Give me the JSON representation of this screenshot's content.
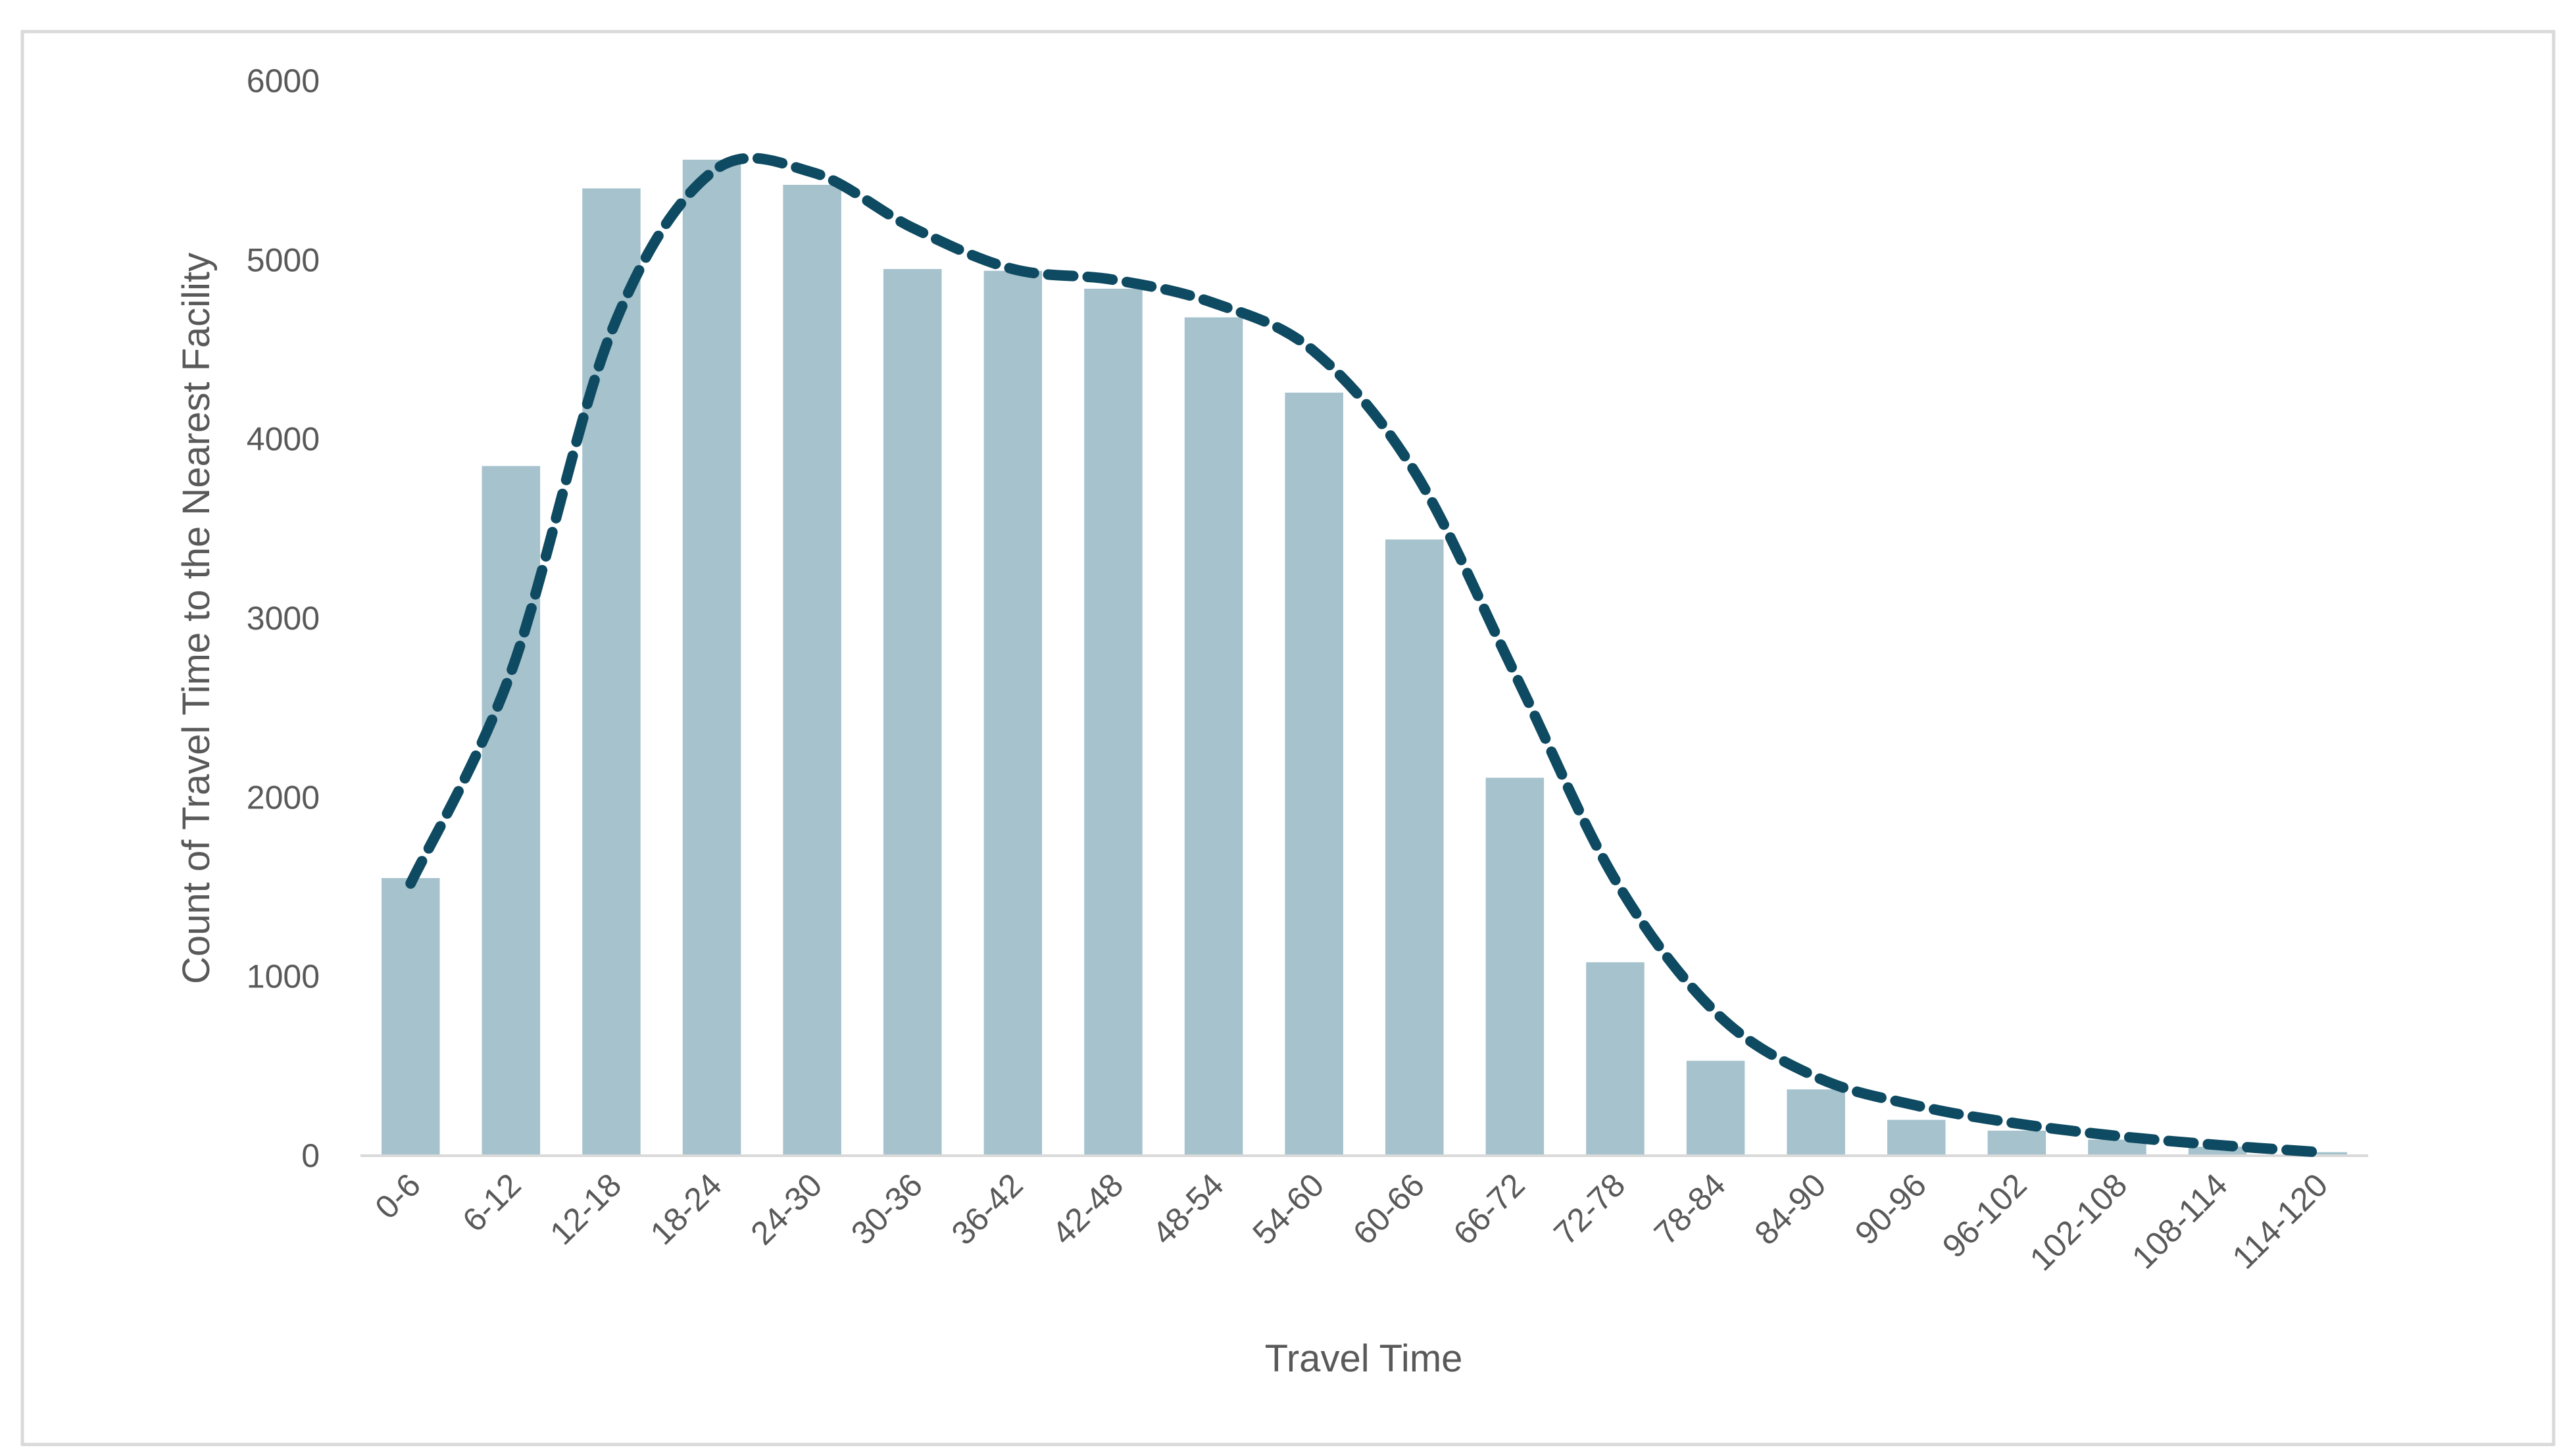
{
  "chart_data": {
    "type": "bar",
    "title": "",
    "xlabel": "Travel Time",
    "ylabel": "Count of Travel Time to the Nearest Facility",
    "ylim": [
      0,
      6000
    ],
    "yticks": [
      0,
      1000,
      2000,
      3000,
      4000,
      5000,
      6000
    ],
    "grid": false,
    "legend": "none",
    "categories": [
      "0-6",
      "6-12",
      "12-18",
      "18-24",
      "24-30",
      "30-36",
      "36-42",
      "42-48",
      "48-54",
      "54-60",
      "60-66",
      "66-72",
      "72-78",
      "78-84",
      "84-90",
      "90-96",
      "96-102",
      "102-108",
      "108-114",
      "114-120"
    ],
    "series": [
      {
        "kind": "bar",
        "color": "#a5c2cd",
        "values": [
          1550,
          3850,
          5400,
          5560,
          5420,
          4950,
          4940,
          4840,
          4680,
          4260,
          3440,
          2110,
          1080,
          530,
          370,
          200,
          140,
          90,
          50,
          20
        ]
      },
      {
        "kind": "line",
        "style": "dashed",
        "smooth": true,
        "color": "#0e4a61",
        "values": [
          1520,
          2700,
          4600,
          5490,
          5490,
          5180,
          4950,
          4890,
          4760,
          4490,
          3820,
          2690,
          1540,
          800,
          440,
          280,
          180,
          110,
          60,
          20
        ]
      }
    ]
  },
  "colors": {
    "frame": "#d9d9d9",
    "axis_line": "#d9d9d9"
  }
}
